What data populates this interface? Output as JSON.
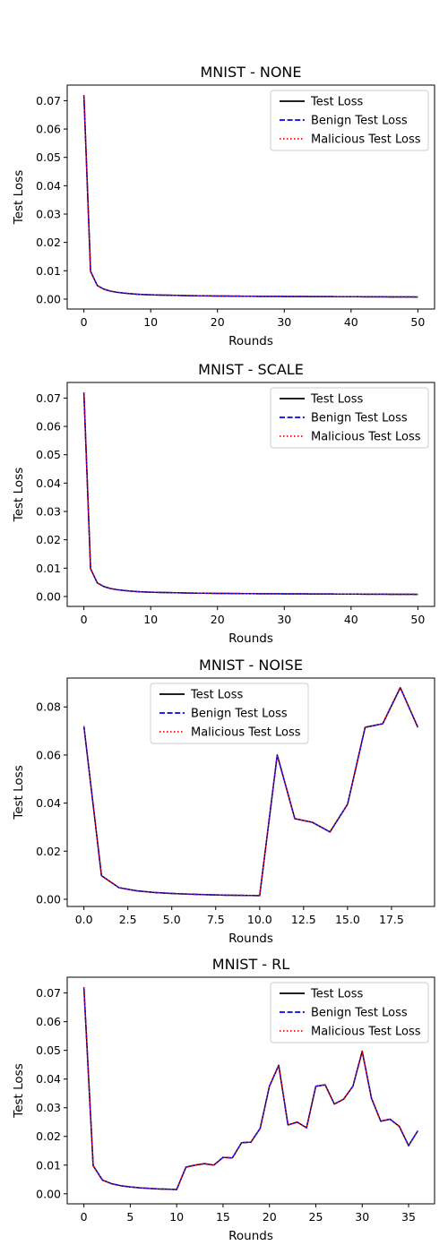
{
  "chart_data": [
    {
      "type": "line",
      "title": "MNIST - NONE",
      "xlabel": "Rounds",
      "ylabel": "Test Loss",
      "xlim": [
        -2.5,
        52.5
      ],
      "ylim": [
        -0.0035,
        0.0755
      ],
      "xticks": [
        0,
        10,
        20,
        30,
        40,
        50
      ],
      "xtick_labels": [
        "0",
        "10",
        "20",
        "30",
        "40",
        "50"
      ],
      "yticks": [
        0,
        0.01,
        0.02,
        0.03,
        0.04,
        0.05,
        0.06,
        0.07
      ],
      "ytick_labels": [
        "0.00",
        "0.01",
        "0.02",
        "0.03",
        "0.04",
        "0.05",
        "0.06",
        "0.07"
      ],
      "legend_position": "top-right",
      "legend_entries": [
        "Test Loss",
        "Benign Test Loss",
        "Malicious Test Loss"
      ],
      "x": [
        0,
        1,
        2,
        3,
        4,
        5,
        6,
        7,
        8,
        9,
        10,
        11,
        12,
        13,
        14,
        15,
        16,
        17,
        18,
        19,
        20,
        21,
        22,
        23,
        24,
        25,
        26,
        27,
        28,
        29,
        30,
        31,
        32,
        33,
        34,
        35,
        36,
        37,
        38,
        39,
        40,
        41,
        42,
        43,
        44,
        45,
        46,
        47,
        48,
        49,
        50
      ],
      "y": [
        0.072,
        0.0098,
        0.0048,
        0.0035,
        0.0028,
        0.0024,
        0.0021,
        0.0019,
        0.0017,
        0.0016,
        0.0015,
        0.00145,
        0.0014,
        0.00135,
        0.0013,
        0.00125,
        0.0012,
        0.00118,
        0.00115,
        0.00112,
        0.0011,
        0.00108,
        0.00106,
        0.00104,
        0.00102,
        0.001,
        0.00098,
        0.00097,
        0.00096,
        0.00095,
        0.00094,
        0.00093,
        0.00092,
        0.00091,
        0.0009,
        0.00089,
        0.00088,
        0.00087,
        0.00086,
        0.00085,
        0.00084,
        0.00083,
        0.00082,
        0.00081,
        0.0008,
        0.00079,
        0.00078,
        0.00077,
        0.00076,
        0.00075,
        0.00074
      ]
    },
    {
      "type": "line",
      "title": "MNIST - SCALE",
      "xlabel": "Rounds",
      "ylabel": "Test Loss",
      "xlim": [
        -2.5,
        52.5
      ],
      "ylim": [
        -0.0035,
        0.0755
      ],
      "xticks": [
        0,
        10,
        20,
        30,
        40,
        50
      ],
      "xtick_labels": [
        "0",
        "10",
        "20",
        "30",
        "40",
        "50"
      ],
      "yticks": [
        0,
        0.01,
        0.02,
        0.03,
        0.04,
        0.05,
        0.06,
        0.07
      ],
      "ytick_labels": [
        "0.00",
        "0.01",
        "0.02",
        "0.03",
        "0.04",
        "0.05",
        "0.06",
        "0.07"
      ],
      "legend_position": "top-right",
      "legend_entries": [
        "Test Loss",
        "Benign Test Loss",
        "Malicious Test Loss"
      ],
      "x": [
        0,
        1,
        2,
        3,
        4,
        5,
        6,
        7,
        8,
        9,
        10,
        11,
        12,
        13,
        14,
        15,
        16,
        17,
        18,
        19,
        20,
        21,
        22,
        23,
        24,
        25,
        26,
        27,
        28,
        29,
        30,
        31,
        32,
        33,
        34,
        35,
        36,
        37,
        38,
        39,
        40,
        41,
        42,
        43,
        44,
        45,
        46,
        47,
        48,
        49,
        50
      ],
      "y": [
        0.072,
        0.0098,
        0.0048,
        0.0035,
        0.0028,
        0.0024,
        0.0021,
        0.0019,
        0.0017,
        0.0016,
        0.0015,
        0.00145,
        0.0014,
        0.00135,
        0.0013,
        0.00125,
        0.0012,
        0.00118,
        0.00115,
        0.00112,
        0.0011,
        0.00108,
        0.00106,
        0.00104,
        0.00102,
        0.001,
        0.00098,
        0.00097,
        0.00096,
        0.00095,
        0.00094,
        0.00093,
        0.00092,
        0.00091,
        0.0009,
        0.00089,
        0.00088,
        0.00087,
        0.00086,
        0.00085,
        0.00084,
        0.00083,
        0.00082,
        0.00081,
        0.0008,
        0.00079,
        0.00078,
        0.00077,
        0.00076,
        0.00075,
        0.00074
      ]
    },
    {
      "type": "line",
      "title": "MNIST - NOISE",
      "xlabel": "Rounds",
      "ylabel": "Test Loss",
      "xlim": [
        -0.95,
        19.95
      ],
      "ylim": [
        -0.003,
        0.092
      ],
      "xticks": [
        0,
        2.5,
        5,
        7.5,
        10,
        12.5,
        15,
        17.5
      ],
      "xtick_labels": [
        "0.0",
        "2.5",
        "5.0",
        "7.5",
        "10.0",
        "12.5",
        "15.0",
        "17.5"
      ],
      "yticks": [
        0,
        0.02,
        0.04,
        0.06,
        0.08
      ],
      "ytick_labels": [
        "0.00",
        "0.02",
        "0.04",
        "0.06",
        "0.08"
      ],
      "legend_position": "upper-center",
      "legend_entries": [
        "Test Loss",
        "Benign Test Loss",
        "Malicious Test Loss"
      ],
      "x": [
        0,
        1,
        2,
        3,
        4,
        5,
        6,
        7,
        8,
        9,
        10,
        11,
        12,
        13,
        14,
        15,
        16,
        17,
        18,
        19
      ],
      "y": [
        0.072,
        0.0098,
        0.0048,
        0.0035,
        0.0028,
        0.0024,
        0.0021,
        0.0019,
        0.0017,
        0.0016,
        0.0015,
        0.06,
        0.0335,
        0.032,
        0.028,
        0.0395,
        0.0715,
        0.073,
        0.088,
        0.0715
      ]
    },
    {
      "type": "line",
      "title": "MNIST - RL",
      "xlabel": "Rounds",
      "ylabel": "Test Loss",
      "xlim": [
        -1.8,
        37.8
      ],
      "ylim": [
        -0.0035,
        0.0755
      ],
      "xticks": [
        0,
        5,
        10,
        15,
        20,
        25,
        30,
        35
      ],
      "xtick_labels": [
        "0",
        "5",
        "10",
        "15",
        "20",
        "25",
        "30",
        "35"
      ],
      "yticks": [
        0,
        0.01,
        0.02,
        0.03,
        0.04,
        0.05,
        0.06,
        0.07
      ],
      "ytick_labels": [
        "0.00",
        "0.01",
        "0.02",
        "0.03",
        "0.04",
        "0.05",
        "0.06",
        "0.07"
      ],
      "legend_position": "top-right",
      "legend_entries": [
        "Test Loss",
        "Benign Test Loss",
        "Malicious Test Loss"
      ],
      "x": [
        0,
        1,
        2,
        3,
        4,
        5,
        6,
        7,
        8,
        9,
        10,
        11,
        12,
        13,
        14,
        15,
        16,
        17,
        18,
        19,
        20,
        21,
        22,
        23,
        24,
        25,
        26,
        27,
        28,
        29,
        30,
        31,
        32,
        33,
        34,
        35,
        36
      ],
      "y": [
        0.072,
        0.0098,
        0.0048,
        0.0035,
        0.0028,
        0.0024,
        0.0021,
        0.0019,
        0.0017,
        0.0016,
        0.0015,
        0.0093,
        0.01,
        0.0105,
        0.01,
        0.0127,
        0.0125,
        0.0178,
        0.018,
        0.0228,
        0.0375,
        0.0448,
        0.024,
        0.025,
        0.023,
        0.0375,
        0.038,
        0.0313,
        0.033,
        0.0375,
        0.0497,
        0.0333,
        0.0253,
        0.026,
        0.0235,
        0.0168,
        0.022
      ]
    }
  ]
}
